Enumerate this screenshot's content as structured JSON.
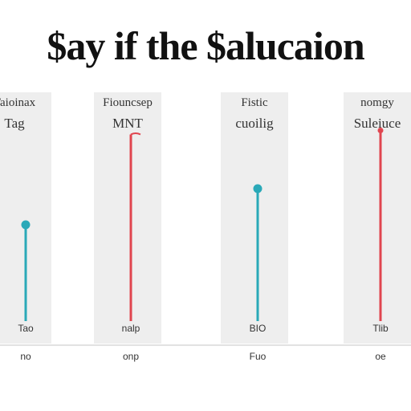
{
  "chart_data": {
    "type": "line",
    "title": "$ay if the $alucaion",
    "ylim": [
      0,
      100
    ],
    "panels": [
      {
        "top_label": "Taioinax",
        "sub_label": "Tag",
        "value": 48,
        "color": "#2aa9b8",
        "marker": "circle",
        "bottom_label": "Tao",
        "bottom_sub": "no"
      },
      {
        "top_label": "Fiouncsep",
        "sub_label": "MNT",
        "value": 93,
        "color": "#e0454f",
        "marker": "flag",
        "bottom_label": "nalp",
        "bottom_sub": "onp"
      },
      {
        "top_label": "Fistic",
        "sub_label": "cuoilig",
        "value": 66,
        "color": "#2aa9b8",
        "marker": "circle",
        "bottom_label": "BIO",
        "bottom_sub": "Fuo"
      },
      {
        "top_label": "nomgy",
        "sub_label": "Suleiuce",
        "value": 95,
        "color": "#e0454f",
        "marker": "dot",
        "bottom_label": "Tlib",
        "bottom_sub": "oe"
      }
    ]
  }
}
